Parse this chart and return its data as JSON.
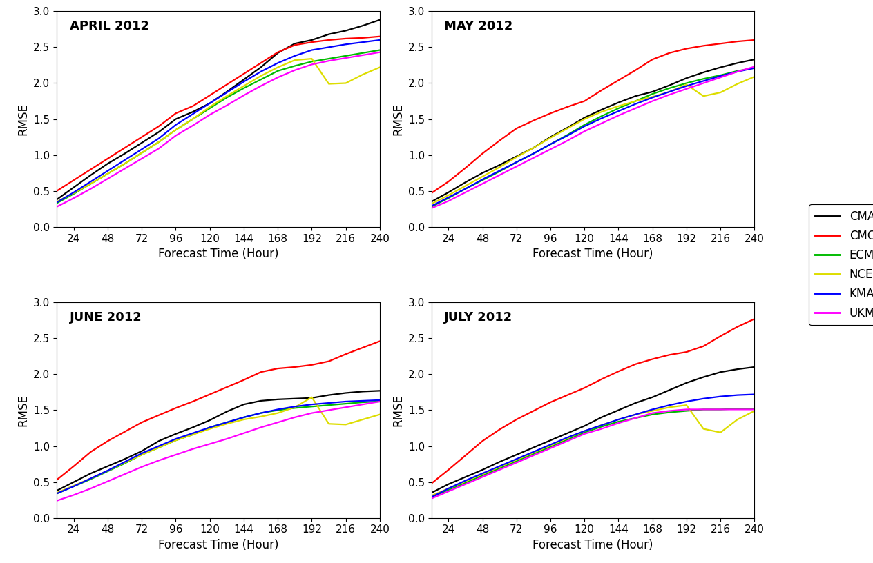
{
  "hours": [
    12,
    24,
    36,
    48,
    60,
    72,
    84,
    96,
    108,
    120,
    132,
    144,
    156,
    168,
    180,
    192,
    204,
    216,
    228,
    240
  ],
  "panels": [
    {
      "title": "APRIL 2012",
      "CMA": [
        0.38,
        0.55,
        0.72,
        0.88,
        1.02,
        1.17,
        1.32,
        1.5,
        1.6,
        1.72,
        1.88,
        2.05,
        2.22,
        2.42,
        2.55,
        2.6,
        2.68,
        2.73,
        2.8,
        2.88
      ],
      "CMC": [
        0.5,
        0.65,
        0.8,
        0.95,
        1.1,
        1.25,
        1.4,
        1.58,
        1.68,
        1.83,
        1.98,
        2.13,
        2.28,
        2.43,
        2.53,
        2.57,
        2.6,
        2.62,
        2.63,
        2.65
      ],
      "ECMWF": [
        0.33,
        0.46,
        0.6,
        0.74,
        0.88,
        1.03,
        1.18,
        1.35,
        1.5,
        1.65,
        1.8,
        1.93,
        2.05,
        2.17,
        2.24,
        2.3,
        2.34,
        2.38,
        2.42,
        2.46
      ],
      "NCEP": [
        0.35,
        0.47,
        0.6,
        0.74,
        0.88,
        1.03,
        1.18,
        1.35,
        1.5,
        1.67,
        1.82,
        1.96,
        2.1,
        2.22,
        2.32,
        2.34,
        1.99,
        2.0,
        2.12,
        2.22
      ],
      "KMA": [
        0.34,
        0.48,
        0.63,
        0.78,
        0.93,
        1.08,
        1.23,
        1.42,
        1.57,
        1.72,
        1.87,
        2.02,
        2.16,
        2.28,
        2.38,
        2.46,
        2.5,
        2.54,
        2.57,
        2.6
      ],
      "UKMO": [
        0.28,
        0.4,
        0.53,
        0.67,
        0.81,
        0.95,
        1.09,
        1.27,
        1.41,
        1.56,
        1.69,
        1.83,
        1.96,
        2.08,
        2.18,
        2.26,
        2.31,
        2.35,
        2.39,
        2.43
      ]
    },
    {
      "title": "MAY 2012",
      "CMA": [
        0.35,
        0.48,
        0.62,
        0.75,
        0.86,
        0.98,
        1.1,
        1.25,
        1.38,
        1.52,
        1.63,
        1.73,
        1.82,
        1.88,
        1.97,
        2.07,
        2.15,
        2.22,
        2.28,
        2.33
      ],
      "CMC": [
        0.47,
        0.63,
        0.82,
        1.02,
        1.2,
        1.37,
        1.48,
        1.58,
        1.67,
        1.75,
        1.9,
        2.04,
        2.18,
        2.33,
        2.42,
        2.48,
        2.52,
        2.55,
        2.58,
        2.6
      ],
      "ECMWF": [
        0.28,
        0.4,
        0.53,
        0.65,
        0.77,
        0.9,
        1.02,
        1.15,
        1.28,
        1.42,
        1.54,
        1.65,
        1.75,
        1.85,
        1.93,
        2.0,
        2.06,
        2.11,
        2.17,
        2.21
      ],
      "NCEP": [
        0.32,
        0.44,
        0.57,
        0.7,
        0.83,
        0.97,
        1.1,
        1.24,
        1.37,
        1.5,
        1.6,
        1.68,
        1.75,
        1.81,
        1.88,
        1.98,
        1.82,
        1.87,
        1.99,
        2.09
      ],
      "KMA": [
        0.29,
        0.41,
        0.53,
        0.66,
        0.78,
        0.9,
        1.02,
        1.15,
        1.27,
        1.4,
        1.51,
        1.61,
        1.71,
        1.8,
        1.88,
        1.96,
        2.03,
        2.1,
        2.16,
        2.21
      ],
      "UKMO": [
        0.26,
        0.36,
        0.48,
        0.6,
        0.72,
        0.84,
        0.96,
        1.08,
        1.2,
        1.33,
        1.44,
        1.55,
        1.65,
        1.75,
        1.84,
        1.92,
        2.0,
        2.08,
        2.16,
        2.23
      ]
    },
    {
      "title": "JUNE 2012",
      "CMA": [
        0.38,
        0.5,
        0.62,
        0.72,
        0.82,
        0.93,
        1.07,
        1.17,
        1.26,
        1.36,
        1.48,
        1.58,
        1.63,
        1.65,
        1.66,
        1.67,
        1.71,
        1.74,
        1.76,
        1.77
      ],
      "CMC": [
        0.53,
        0.72,
        0.92,
        1.07,
        1.2,
        1.33,
        1.43,
        1.53,
        1.62,
        1.72,
        1.82,
        1.92,
        2.03,
        2.08,
        2.1,
        2.13,
        2.18,
        2.28,
        2.37,
        2.46
      ],
      "ECMWF": [
        0.34,
        0.44,
        0.54,
        0.65,
        0.76,
        0.88,
        0.98,
        1.08,
        1.16,
        1.26,
        1.33,
        1.4,
        1.46,
        1.5,
        1.53,
        1.55,
        1.57,
        1.59,
        1.61,
        1.62
      ],
      "NCEP": [
        0.35,
        0.45,
        0.55,
        0.66,
        0.77,
        0.88,
        0.98,
        1.08,
        1.16,
        1.24,
        1.31,
        1.37,
        1.41,
        1.46,
        1.54,
        1.68,
        1.31,
        1.3,
        1.37,
        1.44
      ],
      "KMA": [
        0.34,
        0.44,
        0.55,
        0.66,
        0.78,
        0.9,
        1.0,
        1.1,
        1.18,
        1.26,
        1.33,
        1.4,
        1.46,
        1.51,
        1.55,
        1.58,
        1.6,
        1.62,
        1.63,
        1.64
      ],
      "UKMO": [
        0.24,
        0.32,
        0.41,
        0.51,
        0.61,
        0.71,
        0.8,
        0.88,
        0.96,
        1.03,
        1.1,
        1.18,
        1.26,
        1.33,
        1.4,
        1.46,
        1.5,
        1.54,
        1.58,
        1.62
      ]
    },
    {
      "title": "JULY 2012",
      "CMA": [
        0.35,
        0.47,
        0.57,
        0.67,
        0.78,
        0.88,
        0.98,
        1.08,
        1.18,
        1.28,
        1.4,
        1.5,
        1.6,
        1.68,
        1.78,
        1.88,
        1.96,
        2.03,
        2.07,
        2.1
      ],
      "CMC": [
        0.48,
        0.67,
        0.87,
        1.07,
        1.23,
        1.37,
        1.49,
        1.61,
        1.71,
        1.81,
        1.93,
        2.04,
        2.14,
        2.21,
        2.27,
        2.31,
        2.39,
        2.53,
        2.66,
        2.77
      ],
      "ECMWF": [
        0.29,
        0.39,
        0.49,
        0.59,
        0.69,
        0.79,
        0.89,
        0.99,
        1.09,
        1.19,
        1.27,
        1.34,
        1.39,
        1.44,
        1.47,
        1.49,
        1.51,
        1.51,
        1.52,
        1.52
      ],
      "NCEP": [
        0.31,
        0.41,
        0.51,
        0.61,
        0.71,
        0.81,
        0.91,
        1.01,
        1.11,
        1.21,
        1.29,
        1.37,
        1.44,
        1.49,
        1.54,
        1.57,
        1.24,
        1.19,
        1.37,
        1.49
      ],
      "KMA": [
        0.29,
        0.41,
        0.52,
        0.62,
        0.72,
        0.82,
        0.92,
        1.02,
        1.12,
        1.21,
        1.29,
        1.37,
        1.44,
        1.51,
        1.57,
        1.62,
        1.66,
        1.69,
        1.71,
        1.72
      ],
      "UKMO": [
        0.27,
        0.37,
        0.47,
        0.57,
        0.67,
        0.77,
        0.87,
        0.97,
        1.07,
        1.17,
        1.24,
        1.32,
        1.39,
        1.46,
        1.49,
        1.51,
        1.51,
        1.51,
        1.51,
        1.51
      ]
    }
  ],
  "colors": {
    "CMA": "#000000",
    "CMC": "#ff0000",
    "ECMWF": "#00bb00",
    "NCEP": "#dddd00",
    "KMA": "#0000ff",
    "UKMO": "#ff00ff"
  },
  "linewidth": 1.6,
  "ylim": [
    0.0,
    3.0
  ],
  "yticks": [
    0.0,
    0.5,
    1.0,
    1.5,
    2.0,
    2.5,
    3.0
  ],
  "xticks": [
    24,
    48,
    72,
    96,
    120,
    144,
    168,
    192,
    216,
    240
  ],
  "xlim": [
    12,
    240
  ],
  "ylabel": "RMSE",
  "xlabel": "Forecast Time (Hour)",
  "legend_labels": [
    "CMA",
    "CMC",
    "ECMWF",
    "NCEP",
    "KMA",
    "UKMO"
  ],
  "background_color": "#ffffff",
  "title_fontsize": 13,
  "axis_fontsize": 12,
  "tick_fontsize": 11,
  "legend_fontsize": 12
}
